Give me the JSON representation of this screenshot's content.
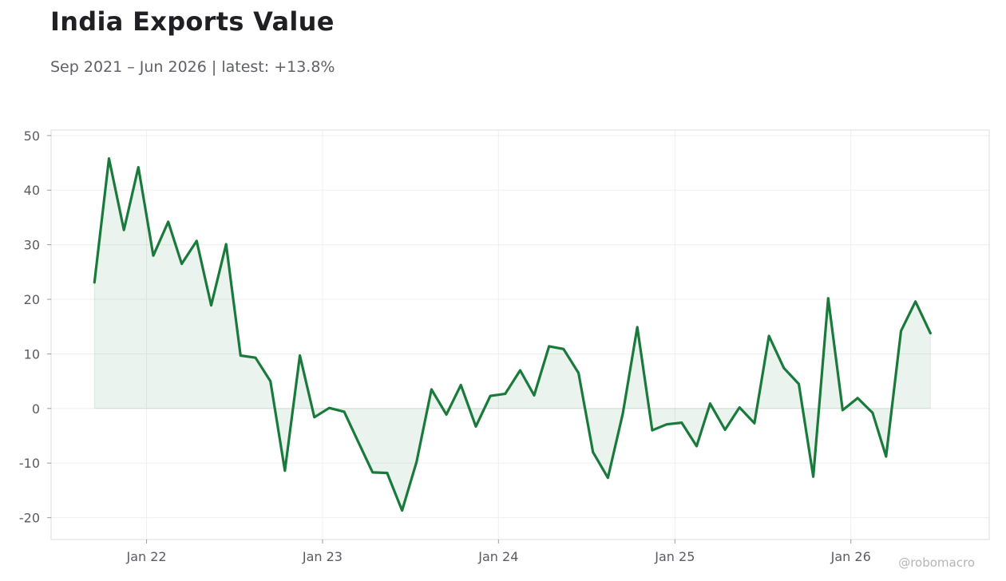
{
  "header": {
    "title": "India Exports Value",
    "subtitle": "Sep 2021 – Jun 2026 | latest: +13.8%"
  },
  "watermark": "@robomacro",
  "colors": {
    "line": "#1a7a3c",
    "fill": "#1a7a3c",
    "grid": "#efefef",
    "frame": "#dcdcdc",
    "text": "#5a5a63"
  },
  "chart_data": {
    "type": "area",
    "title": "India Exports Value",
    "subtitle": "Sep 2021 – Jun 2026 | latest: +13.8%",
    "xlabel": "",
    "ylabel": "",
    "ylim": [
      -24,
      51
    ],
    "yticks": [
      -20,
      -10,
      0,
      10,
      20,
      30,
      40,
      50
    ],
    "xlim": [
      "2021-06-17",
      "2026-10-15"
    ],
    "xticks": [
      {
        "date": "2022-01-01",
        "label": "Jan 22"
      },
      {
        "date": "2023-01-01",
        "label": "Jan 23"
      },
      {
        "date": "2024-01-01",
        "label": "Jan 24"
      },
      {
        "date": "2025-01-01",
        "label": "Jan 25"
      },
      {
        "date": "2026-01-01",
        "label": "Jan 26"
      }
    ],
    "grid": true,
    "series": [
      {
        "x": [
          "2021-09",
          "2021-10",
          "2021-11",
          "2021-12",
          "2022-01",
          "2022-02",
          "2022-03",
          "2022-04",
          "2022-05",
          "2022-06",
          "2022-07",
          "2022-08",
          "2022-09",
          "2022-10",
          "2022-11",
          "2022-12",
          "2023-01",
          "2023-02",
          "2023-03",
          "2023-04",
          "2023-05",
          "2023-06",
          "2023-07",
          "2023-08",
          "2023-09",
          "2023-10",
          "2023-11",
          "2023-12",
          "2024-01",
          "2024-02",
          "2024-03",
          "2024-04",
          "2024-05",
          "2024-06",
          "2024-07",
          "2024-08",
          "2024-09",
          "2024-10",
          "2024-11",
          "2024-12",
          "2025-01",
          "2025-02",
          "2025-03",
          "2025-04",
          "2025-05",
          "2025-06",
          "2025-07",
          "2025-08",
          "2025-09",
          "2025-10",
          "2025-11",
          "2025-12",
          "2026-01",
          "2026-02",
          "2026-03",
          "2026-04",
          "2026-05",
          "2026-06"
        ],
        "values": [
          23.1,
          45.8,
          32.7,
          44.2,
          28.0,
          34.2,
          26.5,
          30.7,
          18.9,
          30.1,
          9.7,
          9.3,
          5.0,
          -11.4,
          9.7,
          -1.6,
          0.1,
          -0.6,
          -5.9,
          -11.7,
          -11.8,
          -18.7,
          -9.8,
          3.5,
          -1.1,
          4.3,
          -3.3,
          2.3,
          2.7,
          7.0,
          2.4,
          11.4,
          10.9,
          6.5,
          -8.0,
          -12.7,
          -0.9,
          14.9,
          -4.0,
          -2.9,
          -2.6,
          -6.9,
          0.9,
          -3.9,
          0.2,
          -2.7,
          13.3,
          7.4,
          4.5,
          -12.5,
          20.2,
          -0.3,
          1.9,
          -0.8,
          -8.8,
          14.2,
          19.6,
          13.8
        ]
      }
    ]
  }
}
